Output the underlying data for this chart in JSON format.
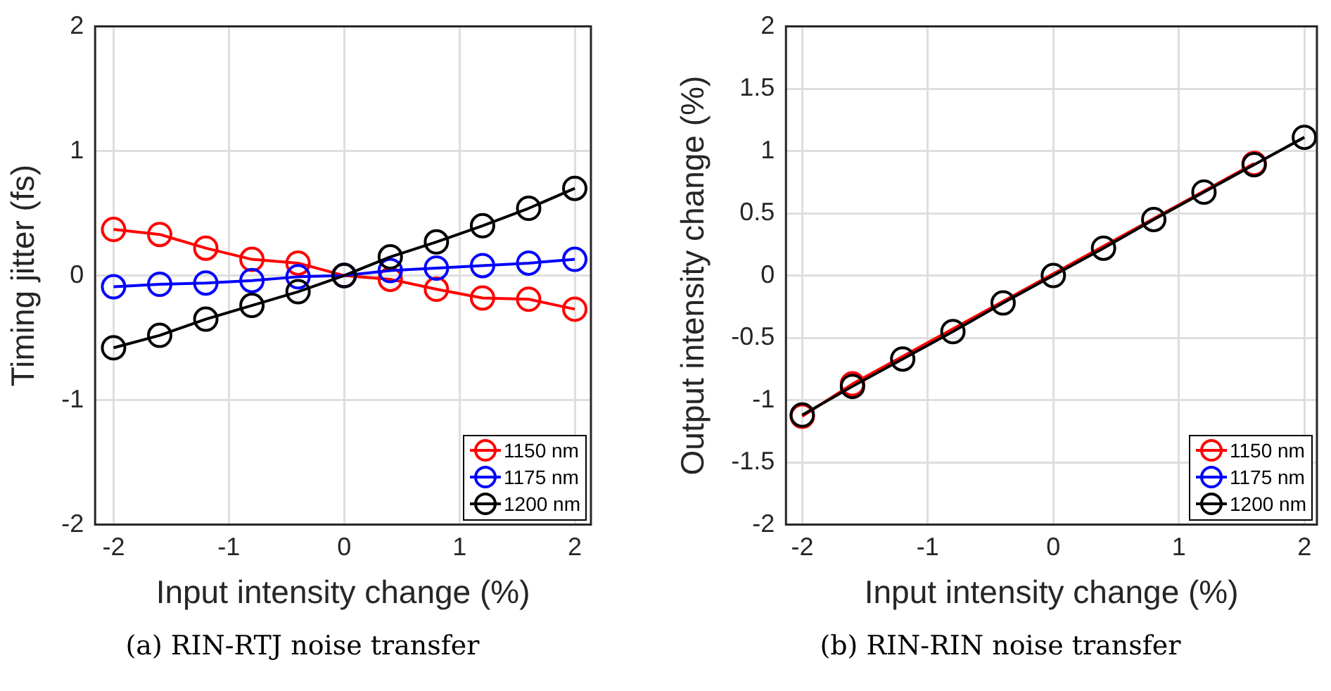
{
  "chart_data": [
    {
      "type": "line",
      "xlabel": "Input intensity change (%)",
      "ylabel": "Timing jitter (fs)",
      "annotations": [
        "(a) RIN-RTJ noise transfer"
      ],
      "x": [
        -2,
        -1.6,
        -1.2,
        -0.8,
        -0.4,
        0,
        0.4,
        0.8,
        1.2,
        1.6,
        2
      ],
      "xlim": [
        -2.16,
        2.14
      ],
      "xticks": [
        -2,
        -1,
        0,
        1,
        2
      ],
      "ylim": [
        -2,
        2
      ],
      "yticks": [
        -2,
        -1,
        0,
        1,
        2
      ],
      "series": [
        {
          "name": "1150 nm",
          "color": "#ff0000",
          "values": [
            0.37,
            0.33,
            0.22,
            0.13,
            0.1,
            0,
            -0.03,
            -0.11,
            -0.18,
            -0.19,
            -0.27
          ]
        },
        {
          "name": "1175 nm",
          "color": "#0000ff",
          "values": [
            -0.09,
            -0.07,
            -0.06,
            -0.04,
            -0.01,
            0,
            0.04,
            0.06,
            0.08,
            0.1,
            0.13
          ]
        },
        {
          "name": "1200 nm",
          "color": "#000000",
          "values": [
            -0.58,
            -0.48,
            -0.35,
            -0.24,
            -0.13,
            0,
            0.15,
            0.27,
            0.4,
            0.54,
            0.7
          ]
        }
      ],
      "grid": true,
      "legend": "bottom right",
      "marker": "circle"
    },
    {
      "type": "line",
      "xlabel": "Input intensity change (%)",
      "ylabel": "Output intensity change (%)",
      "annotations": [
        "(b) RIN-RIN noise transfer"
      ],
      "x": [
        -2,
        -1.6,
        -1.2,
        -0.8,
        -0.4,
        0,
        0.4,
        0.8,
        1.2,
        1.6,
        2
      ],
      "xlim": [
        -2.13,
        2.1
      ],
      "xticks": [
        -2,
        -1,
        0,
        1,
        2
      ],
      "ylim": [
        -2,
        2
      ],
      "yticks": [
        -2,
        -1.5,
        -1,
        -0.5,
        0,
        0.5,
        1,
        1.5,
        2
      ],
      "series": [
        {
          "name": "1150 nm",
          "color": "#ff0000",
          "values": [
            -1.13,
            -0.87,
            null,
            null,
            null,
            null,
            null,
            null,
            null,
            0.9,
            null
          ]
        },
        {
          "name": "1175 nm",
          "color": "#0000ff",
          "values": [
            null,
            null,
            null,
            null,
            null,
            null,
            null,
            null,
            null,
            null,
            null
          ]
        },
        {
          "name": "1200 nm",
          "color": "#000000",
          "values": [
            -1.12,
            -0.89,
            -0.67,
            -0.45,
            -0.22,
            0,
            0.22,
            0.45,
            0.67,
            0.89,
            1.11
          ]
        }
      ],
      "grid": true,
      "legend": "bottom right",
      "marker": "circle"
    }
  ]
}
